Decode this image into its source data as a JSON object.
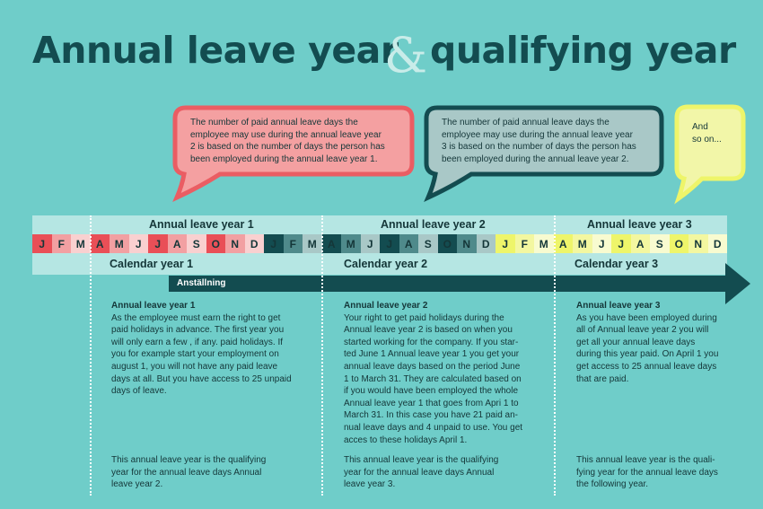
{
  "title": {
    "part1": "Annual leave year",
    "amp": "&",
    "part2": "qualifying year"
  },
  "bubbles": [
    {
      "lines": [
        "The number of paid annual leave days the",
        "employee may use during the annual leave year",
        "2 is based on the number of days the person has",
        "been employed during the annual leave year 1."
      ],
      "color": "#f4a0a1",
      "border": "#ea5d63"
    },
    {
      "lines": [
        "The number of paid annual leave days the",
        "employee may use during the annual leave year",
        "3 is based on the number of days the person has",
        "been employed during the annual leave year 2."
      ],
      "color": "#a9c8c7",
      "border": "#134c50"
    },
    {
      "lines": [
        "And",
        "so on..."
      ],
      "color": "#f2f6a8",
      "border": "#eef56a"
    }
  ],
  "leave_years": [
    "Annual leave year 1",
    "Annual leave year 2",
    "Annual leave year 3"
  ],
  "calendar_years": [
    "Calendar year 1",
    "Calendar year 2",
    "Calendar year 3"
  ],
  "arrow_label": "Anställning",
  "months": [
    {
      "l": "J",
      "bg": "#e94f57"
    },
    {
      "l": "F",
      "bg": "#f2a0a2"
    },
    {
      "l": "M",
      "bg": "#f9d0d0"
    },
    {
      "l": "A",
      "bg": "#e94f57"
    },
    {
      "l": "M",
      "bg": "#f2a0a2"
    },
    {
      "l": "J",
      "bg": "#f9d0d0"
    },
    {
      "l": "J",
      "bg": "#e94f57"
    },
    {
      "l": "A",
      "bg": "#f2a0a2"
    },
    {
      "l": "S",
      "bg": "#f9d0d0"
    },
    {
      "l": "O",
      "bg": "#e94f57"
    },
    {
      "l": "N",
      "bg": "#f2a0a2"
    },
    {
      "l": "D",
      "bg": "#f9d0d0"
    },
    {
      "l": "J",
      "bg": "#134c50"
    },
    {
      "l": "F",
      "bg": "#4f8a8b"
    },
    {
      "l": "M",
      "bg": "#a9c8c7"
    },
    {
      "l": "A",
      "bg": "#134c50"
    },
    {
      "l": "M",
      "bg": "#4f8a8b"
    },
    {
      "l": "J",
      "bg": "#a9c8c7"
    },
    {
      "l": "J",
      "bg": "#134c50"
    },
    {
      "l": "A",
      "bg": "#4f8a8b"
    },
    {
      "l": "S",
      "bg": "#a9c8c7"
    },
    {
      "l": "O",
      "bg": "#134c50"
    },
    {
      "l": "N",
      "bg": "#4f8a8b"
    },
    {
      "l": "D",
      "bg": "#a9c8c7"
    },
    {
      "l": "J",
      "bg": "#eef56a"
    },
    {
      "l": "F",
      "bg": "#f3f7a0"
    },
    {
      "l": "M",
      "bg": "#f8fbd0"
    },
    {
      "l": "A",
      "bg": "#eef56a"
    },
    {
      "l": "M",
      "bg": "#f3f7a0"
    },
    {
      "l": "J",
      "bg": "#f8fbd0"
    },
    {
      "l": "J",
      "bg": "#eef56a"
    },
    {
      "l": "A",
      "bg": "#f3f7a0"
    },
    {
      "l": "S",
      "bg": "#f8fbd0"
    },
    {
      "l": "O",
      "bg": "#eef56a"
    },
    {
      "l": "N",
      "bg": "#f3f7a0"
    },
    {
      "l": "D",
      "bg": "#f8fbd0"
    }
  ],
  "columns": [
    {
      "heading": "Annual leave year 1",
      "body": [
        "As the employee must earn the right to get",
        "paid holidays in advance. The first year you",
        "will only earn a few , if any. paid holidays. If",
        "you for example start your employment on",
        "august 1, you will not have any paid leave",
        "days at all. But you have access to 25 unpaid",
        "days of leave."
      ],
      "footer": [
        "This annual leave year is the qualifying",
        "year for the annual leave days Annual",
        "leave year 2."
      ]
    },
    {
      "heading": "Annual leave year 2",
      "body": [
        "Your right to get paid holidays during the",
        "Annual leave year 2 is based on when you",
        "started working for the company. If you star-",
        "ted June 1 Annual leave year 1 you get your",
        "annual leave days  based on the period June",
        "1 to March 31. They are calculated based on",
        "if you would have been employed the whole",
        "Annual leave year 1 that goes from Apri 1 to",
        "March 31. In this case you have 21 paid an-",
        "nual leave days and 4 unpaid to use. You get",
        "acces to these holidays April 1."
      ],
      "footer": [
        "This annual leave year is the qualifying",
        "year for the annual leave days Annual",
        "leave year 3."
      ]
    },
    {
      "heading": "Annual leave year 3",
      "body": [
        "As you have been employed during",
        "all of Annual leave year 2 you will",
        "get all your annual leave days",
        "during this year paid. On April 1 you",
        "get access to 25 annual leave days",
        "that are paid."
      ],
      "footer": [
        "This annual leave year is the quali-",
        "fying year for the annual leave days",
        "the following year."
      ]
    }
  ]
}
